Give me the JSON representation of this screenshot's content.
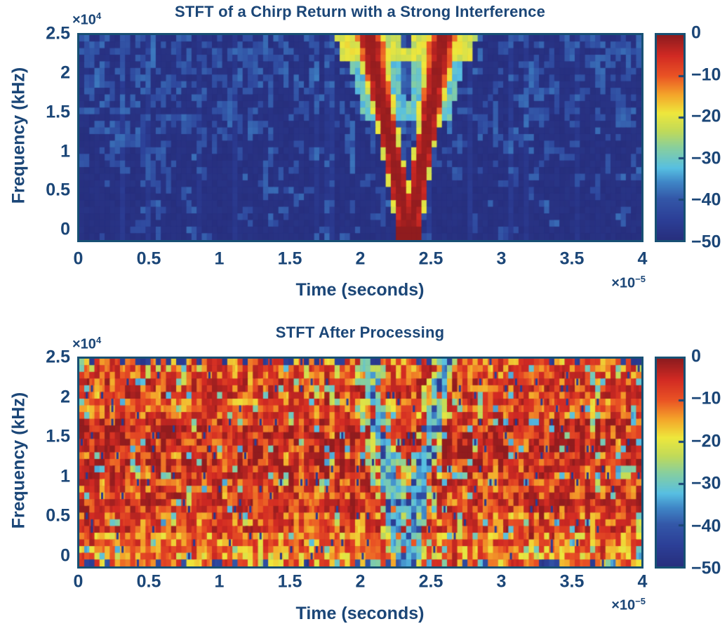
{
  "page": {
    "background": "#ffffff"
  },
  "styles": {
    "text_color": "#1b4677",
    "axis_border_color": "#175073",
    "colormap_stops": [
      [
        0.0,
        "#272f7e"
      ],
      [
        0.1,
        "#2c3f97"
      ],
      [
        0.2,
        "#3357a8"
      ],
      [
        0.28,
        "#3f85c6"
      ],
      [
        0.35,
        "#57bfe2"
      ],
      [
        0.45,
        "#88cf9e"
      ],
      [
        0.53,
        "#c0da5a"
      ],
      [
        0.62,
        "#eee73c"
      ],
      [
        0.71,
        "#f4a42a"
      ],
      [
        0.8,
        "#ea5424"
      ],
      [
        0.9,
        "#d22a23"
      ],
      [
        1.0,
        "#8d1b1e"
      ]
    ]
  },
  "chart_data": [
    {
      "type": "heatmap",
      "title": "STFT of a Chirp Return with a Strong Interference",
      "xlabel": "Time (seconds)",
      "ylabel": "Frequency (kHz)",
      "x_exp_base": "×10",
      "x_exp_sup": "−5",
      "y_exp_base": "×10",
      "y_exp_sup": "4",
      "x_ticks": [
        "0",
        "0.5",
        "1",
        "1.5",
        "2",
        "2.5",
        "3",
        "3.5",
        "4"
      ],
      "x_tick_values": [
        0,
        0.5,
        1,
        1.5,
        2,
        2.5,
        3,
        3.5,
        4
      ],
      "y_ticks": [
        "2.5",
        "2",
        "1.5",
        "1",
        "0.5",
        "0"
      ],
      "y_tick_values": [
        2.5,
        2,
        1.5,
        1,
        0.5,
        0
      ],
      "xlim": [
        0,
        4
      ],
      "ylim": [
        -0.16,
        2.51
      ],
      "time_units": "1e-5 seconds",
      "freq_units": "1e4 kHz",
      "grid": false,
      "colorbar": {
        "ticks": [
          "0",
          "−10",
          "−20",
          "−30",
          "−40",
          "−50"
        ],
        "tick_values": [
          0,
          -10,
          -20,
          -30,
          -40,
          -50
        ],
        "clim": [
          -50,
          0
        ],
        "colormap": "jet",
        "position": "right"
      },
      "content": {
        "description": "Dark navy noise floor with light-blue speckles (denser at high frequency) and a strong V-shaped linear-chirp ridge in red/yellow reaching 0 dB at its apex.",
        "noise_floor_db": -50,
        "speckle_db_range": [
          -44,
          -38
        ],
        "chirp_apex_time": 2.35,
        "chirp_left_arm_top_time": 2.06,
        "chirp_right_arm_top_time": 2.59,
        "chirp_freq_span": [
          0,
          2.5
        ],
        "chirp_peak_db": 0
      }
    },
    {
      "type": "heatmap",
      "title": "STFT After Processing",
      "xlabel": "Time (seconds)",
      "ylabel": "Frequency (kHz)",
      "x_exp_base": "×10",
      "x_exp_sup": "−5",
      "y_exp_base": "×10",
      "y_exp_sup": "4",
      "x_ticks": [
        "0",
        "0.5",
        "1",
        "1.5",
        "2",
        "2.5",
        "3",
        "3.5",
        "4"
      ],
      "x_tick_values": [
        0,
        0.5,
        1,
        1.5,
        2,
        2.5,
        3,
        3.5,
        4
      ],
      "y_ticks": [
        "2.5",
        "2",
        "1.5",
        "1",
        "0.5",
        "0"
      ],
      "y_tick_values": [
        2.5,
        2,
        1.5,
        1,
        0.5,
        0
      ],
      "xlim": [
        0,
        4
      ],
      "ylim": [
        -0.16,
        2.51
      ],
      "time_units": "1e-5 seconds",
      "freq_units": "1e4 kHz",
      "grid": false,
      "colorbar": {
        "ticks": [
          "0",
          "−10",
          "−20",
          "−30",
          "−40",
          "−50"
        ],
        "tick_values": [
          0,
          -10,
          -20,
          -30,
          -40,
          -50
        ],
        "clim": [
          -50,
          0
        ],
        "colormap": "jet",
        "position": "right"
      },
      "content": {
        "description": "Noisy red/orange/yellow field (≈ −1 to −20 dB) with scattered cyan cells and thin dark-blue slivers; a cyan/blue V-shaped notch remains where the chirp ridge was removed.",
        "background_db_range": [
          -20,
          -1
        ],
        "notch_db_range": [
          -42,
          -24
        ],
        "apex_time": 2.33,
        "left_arm_top_time": 2.05,
        "right_arm_top_time": 2.6
      }
    }
  ]
}
